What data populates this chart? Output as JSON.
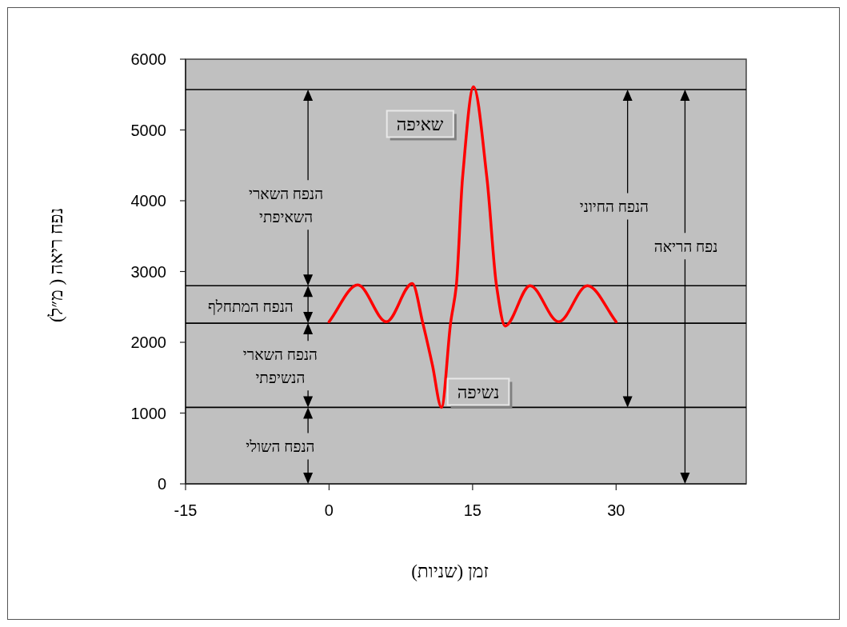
{
  "chart_data": {
    "type": "line",
    "xlabel": "זמן (שניות)",
    "ylabel": "נפח ריאה ( מ״ל)",
    "xlim": [
      -15,
      43.6
    ],
    "ylim": [
      0,
      6000
    ],
    "xticks": [
      -15,
      0,
      15,
      30
    ],
    "yticks": [
      0,
      1000,
      2000,
      3000,
      4000,
      5000,
      6000
    ],
    "grid": false,
    "series": [
      {
        "color": "#ff0000",
        "x": [
          0,
          3,
          6,
          8.7,
          9.8,
          10.8,
          11.75,
          12.7,
          13.3,
          13.95,
          15.1,
          16.5,
          17.5,
          18.4,
          21,
          24,
          27,
          30
        ],
        "values": [
          2290,
          2810,
          2290,
          2830,
          2270,
          1680,
          1080,
          2270,
          2800,
          4320,
          5610,
          4320,
          2800,
          2230,
          2800,
          2290,
          2800,
          2290
        ]
      }
    ],
    "ref_lines": [
      {
        "axis": "y",
        "value": 5570,
        "color": "#000000"
      },
      {
        "axis": "y",
        "value": 2800,
        "color": "#000000"
      },
      {
        "axis": "y",
        "value": 2270,
        "color": "#000000"
      },
      {
        "axis": "y",
        "value": 1080,
        "color": "#000000"
      }
    ],
    "annotations": [
      "שאיפה",
      "נשיפה",
      "הנפח השארי\nהשאיפתי",
      "הנפח המתחלף",
      "הנפח השארי\nהנשיפתי",
      "הנפח השולי",
      "הנפח החיוני",
      "נפח הריאה"
    ]
  }
}
